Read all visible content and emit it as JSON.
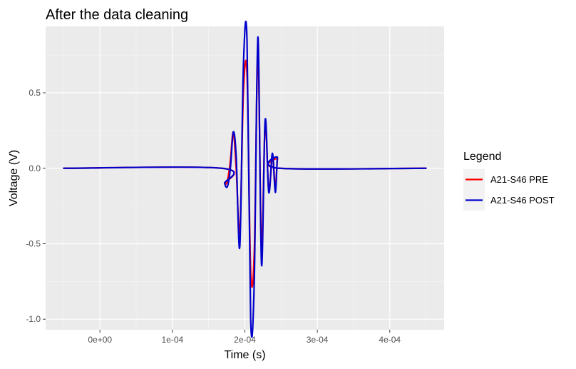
{
  "chart_data": {
    "type": "line",
    "title": "After the data cleaning",
    "xlabel": "Time (s)",
    "ylabel": "Voltage (V)",
    "xlim": [
      -7.5e-05,
      0.000475
    ],
    "ylim": [
      -1.07,
      0.94
    ],
    "x_ticks": [
      {
        "value": 0,
        "label": "0e+00"
      },
      {
        "value": 0.0001,
        "label": "1e-04"
      },
      {
        "value": 0.0002,
        "label": "2e-04"
      },
      {
        "value": 0.0003,
        "label": "3e-04"
      },
      {
        "value": 0.0004,
        "label": "4e-04"
      }
    ],
    "y_ticks": [
      {
        "value": -1.0,
        "label": "-1.0"
      },
      {
        "value": -0.5,
        "label": "-0.5"
      },
      {
        "value": 0.0,
        "label": "0.0"
      },
      {
        "value": 0.5,
        "label": "0.5"
      }
    ],
    "grid": true,
    "background": "#ebebeb",
    "legend": {
      "title": "Legend",
      "position": "right"
    },
    "series": [
      {
        "name": "A21-S46 PRE",
        "color": "#ff0000",
        "x": [
          -5e-05,
          0.000168,
          0.000172,
          0.000176,
          0.00018,
          0.000184,
          0.000188,
          0.000193,
          0.000198,
          0.000203,
          0.000208,
          0.000213,
          0.000218,
          0.000223,
          0.000228,
          0.000233,
          0.000238,
          0.000242,
          0.000245,
          0.000248,
          0.00045
        ],
        "values": [
          0,
          0,
          -0.1,
          -0.08,
          0.05,
          0.24,
          0.0,
          -0.42,
          0.5,
          0.62,
          -0.68,
          -0.55,
          0.75,
          -0.52,
          0.3,
          -0.15,
          0.08,
          -0.12,
          0.06,
          0.0,
          0
        ]
      },
      {
        "name": "A21-S46 POST",
        "color": "#0000cd",
        "x": [
          -5e-05,
          0.000168,
          0.000172,
          0.000176,
          0.00018,
          0.000184,
          0.000188,
          0.000193,
          0.000198,
          0.000203,
          0.000208,
          0.000213,
          0.000218,
          0.000223,
          0.000228,
          0.000233,
          0.000238,
          0.000242,
          0.000245,
          0.000248,
          0.00045
        ],
        "values": [
          0,
          0,
          -0.1,
          -0.12,
          0.0,
          0.24,
          0.08,
          -0.52,
          0.68,
          0.84,
          -1.0,
          -0.74,
          0.87,
          -0.64,
          0.32,
          -0.16,
          0.1,
          -0.16,
          0.07,
          0.0,
          0
        ]
      }
    ]
  }
}
